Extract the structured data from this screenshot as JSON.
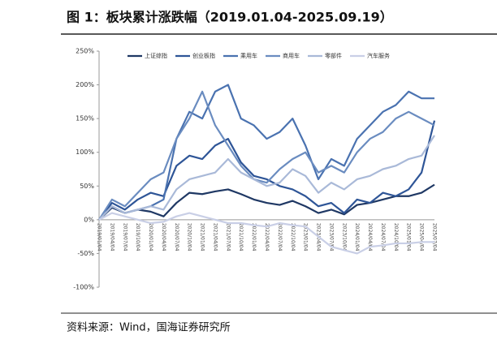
{
  "chart_data": {
    "type": "line",
    "title": "图 1：板块累计涨跌幅（2019.01.04-2025.09.19）",
    "source": "资料来源：Wind，国海证券研究所",
    "categories": [
      "2019/01/04",
      "2019/04/04",
      "2019/07/04",
      "2019/10/04",
      "2020/01/04",
      "2020/04/04",
      "2020/07/04",
      "2020/10/04",
      "2021/01/04",
      "2021/04/04",
      "2021/07/04",
      "2021/10/04",
      "2022/01/04",
      "2022/04/04",
      "2022/07/04",
      "2022/10/04",
      "2023/01/04",
      "2023/04/04",
      "2023/07/04",
      "2023/10/04",
      "2024/01/04",
      "2024/04/04",
      "2024/07/04",
      "2024/10/04",
      "2025/01/04",
      "2025/04/04",
      "2025/07/04"
    ],
    "series": [
      {
        "name": "上证综指",
        "color": "#1f3864",
        "values": [
          0,
          18,
          10,
          15,
          12,
          5,
          25,
          40,
          38,
          42,
          45,
          38,
          30,
          25,
          22,
          28,
          20,
          10,
          15,
          8,
          22,
          25,
          30,
          35,
          35,
          40,
          52
        ]
      },
      {
        "name": "创业板指",
        "color": "#2e5597",
        "values": [
          0,
          25,
          15,
          30,
          40,
          35,
          80,
          95,
          90,
          110,
          120,
          85,
          65,
          60,
          50,
          45,
          35,
          20,
          25,
          10,
          30,
          25,
          40,
          35,
          45,
          70,
          147
        ]
      },
      {
        "name": "乘用车",
        "color": "#4a72b0",
        "values": [
          0,
          20,
          10,
          15,
          20,
          30,
          120,
          160,
          150,
          190,
          200,
          150,
          140,
          120,
          130,
          150,
          110,
          60,
          90,
          80,
          120,
          140,
          160,
          170,
          190,
          180,
          180
        ]
      },
      {
        "name": "商用车",
        "color": "#6a8cc0",
        "values": [
          0,
          30,
          20,
          40,
          60,
          70,
          120,
          150,
          190,
          140,
          110,
          80,
          60,
          55,
          75,
          90,
          100,
          70,
          80,
          70,
          100,
          120,
          130,
          150,
          160,
          150,
          140
        ]
      },
      {
        "name": "零部件",
        "color": "#a9b9d8",
        "values": [
          0,
          20,
          10,
          15,
          20,
          15,
          45,
          60,
          65,
          70,
          90,
          70,
          60,
          50,
          55,
          75,
          65,
          40,
          55,
          45,
          60,
          65,
          75,
          80,
          90,
          95,
          125
        ]
      },
      {
        "name": "汽车服务",
        "color": "#c9cfe6",
        "values": [
          0,
          10,
          5,
          0,
          -5,
          -3,
          5,
          10,
          5,
          0,
          -5,
          -5,
          -8,
          -10,
          -5,
          -8,
          -10,
          -25,
          -40,
          -45,
          -50,
          -40,
          -38,
          -35,
          -35,
          -33,
          -33
        ]
      }
    ],
    "ylim": [
      -100,
      250
    ],
    "yticks": [
      {
        "value": -100,
        "label": "-100%"
      },
      {
        "value": -50,
        "label": "-50%"
      },
      {
        "value": 0,
        "label": "0%"
      },
      {
        "value": 50,
        "label": "50%"
      },
      {
        "value": 100,
        "label": "100%"
      },
      {
        "value": 150,
        "label": "150%"
      },
      {
        "value": 200,
        "label": "200%"
      },
      {
        "value": 250,
        "label": "250%"
      }
    ]
  }
}
